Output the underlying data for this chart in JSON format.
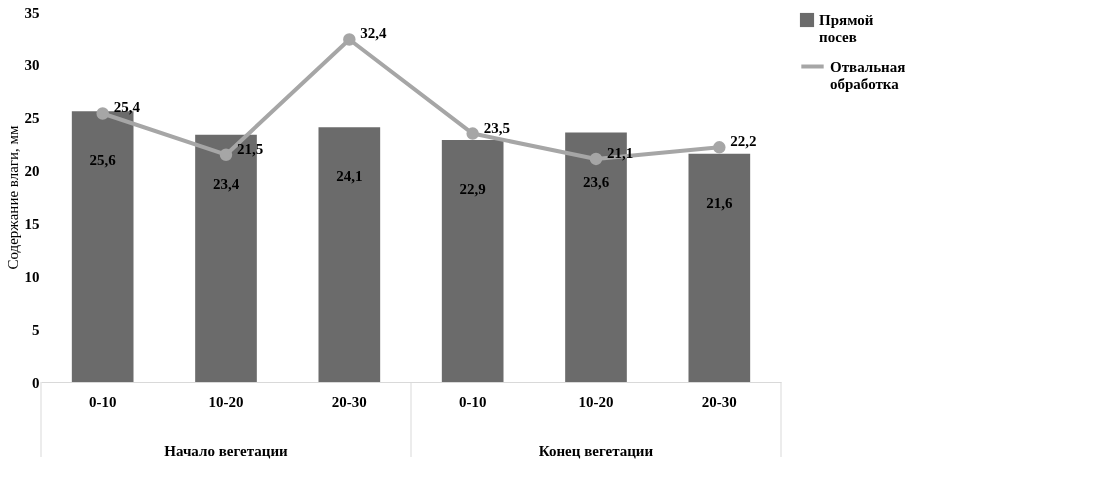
{
  "chart_data": {
    "type": "bar",
    "ylabel": "Содержание влаги, мм",
    "categories": [
      "0-10",
      "10-20",
      "20-30",
      "0-10",
      "10-20",
      "20-30"
    ],
    "series": [
      {
        "name": "Прямой посев",
        "color": "#6b6b6b",
        "values": [
          25.6,
          23.4,
          24.1,
          22.9,
          23.6,
          21.6
        ],
        "value_labels": [
          "25,6",
          "23,4",
          "24,1",
          "22,9",
          "23,6",
          "21,6"
        ]
      },
      {
        "name": "Отвальная обработка",
        "type": "line",
        "color": "#a6a6a6",
        "values": [
          25.4,
          21.5,
          32.4,
          23.5,
          21.1,
          22.2
        ],
        "value_labels": [
          "25,4",
          "21,5",
          "32,4",
          "23,5",
          "21,1",
          "22,2"
        ]
      }
    ],
    "annotations": [
      "Начало вегетации",
      "Конец вегетации"
    ],
    "ylim": [
      0,
      35
    ],
    "yticks": [
      0,
      5,
      10,
      15,
      20,
      25,
      30,
      35
    ],
    "grid": false,
    "legend": "right",
    "marker": "circle",
    "line_style": "solid"
  }
}
